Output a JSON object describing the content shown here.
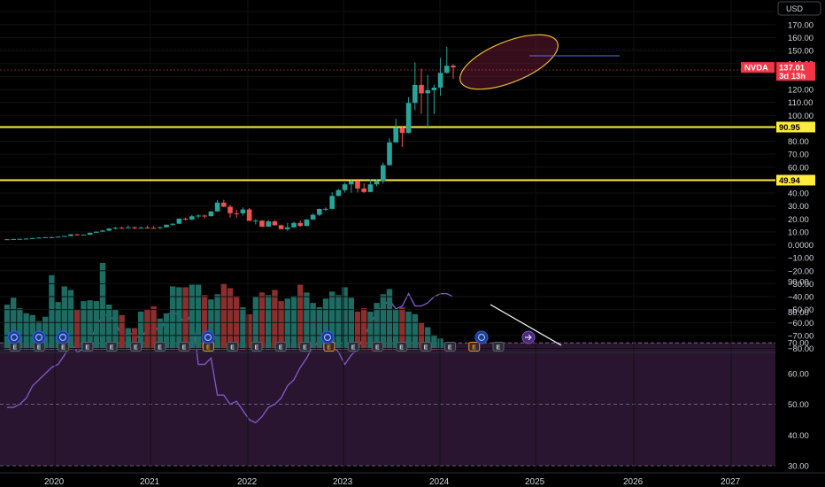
{
  "currency": "USD",
  "symbol": "NVDA",
  "last_price": "137.01",
  "countdown": "3d 13h",
  "price_axis": {
    "ticks": [
      "180.00",
      "170.00",
      "160.00",
      "150.00",
      "140.00",
      "130.00",
      "120.00",
      "110.00",
      "100.00",
      "90.00",
      "80.00",
      "70.00",
      "60.00",
      "50.00",
      "40.00",
      "30.00",
      "20.00",
      "10.00",
      "0.0000",
      "−10.00",
      "−20.00",
      "−30.00",
      "−40.00",
      "−50.00",
      "−60.00",
      "−70.00",
      "−80.00"
    ]
  },
  "rsi_axis": {
    "ticks": [
      "90.00",
      "80.00",
      "70.00",
      "60.00",
      "50.00",
      "40.00",
      "30.00"
    ]
  },
  "levels": [
    {
      "label": "90.95",
      "value": 90.95
    },
    {
      "label": "49.94",
      "value": 49.94
    }
  ],
  "time_axis": {
    "labels": [
      "2020",
      "2021",
      "2022",
      "2023",
      "2024",
      "2025",
      "2026",
      "2027"
    ]
  },
  "colors": {
    "up": "#26a69a",
    "down": "#ef5350",
    "level": "#ffeb3b",
    "rsi_line": "#7e57c2",
    "rsi_band": "#2a1530",
    "ellipse": "#e8b830",
    "badge_dividend": "#2962ff",
    "badge_earnings": "#787b86",
    "price_tag": "#f23645"
  },
  "chart_data": {
    "type": "candlestick",
    "interval": "monthly",
    "candles": [
      {
        "o": 4.0,
        "h": 4.6,
        "l": 3.9,
        "c": 4.3
      },
      {
        "o": 4.3,
        "h": 4.7,
        "l": 4.2,
        "c": 4.5
      },
      {
        "o": 4.5,
        "h": 4.9,
        "l": 4.4,
        "c": 4.6
      },
      {
        "o": 4.6,
        "h": 5.0,
        "l": 4.5,
        "c": 4.8
      },
      {
        "o": 4.8,
        "h": 5.4,
        "l": 4.7,
        "c": 5.2
      },
      {
        "o": 5.2,
        "h": 5.8,
        "l": 5.0,
        "c": 5.6
      },
      {
        "o": 5.6,
        "h": 6.0,
        "l": 5.3,
        "c": 5.9
      },
      {
        "o": 5.9,
        "h": 6.3,
        "l": 5.6,
        "c": 5.9
      },
      {
        "o": 5.9,
        "h": 6.5,
        "l": 5.8,
        "c": 6.3
      },
      {
        "o": 6.3,
        "h": 7.0,
        "l": 6.1,
        "c": 6.8
      },
      {
        "o": 6.8,
        "h": 8.3,
        "l": 6.6,
        "c": 8.1
      },
      {
        "o": 8.1,
        "h": 8.6,
        "l": 7.4,
        "c": 7.5
      },
      {
        "o": 7.5,
        "h": 8.0,
        "l": 7.2,
        "c": 7.8
      },
      {
        "o": 7.8,
        "h": 9.5,
        "l": 7.6,
        "c": 9.3
      },
      {
        "o": 9.3,
        "h": 10.3,
        "l": 9.2,
        "c": 10.2
      },
      {
        "o": 10.2,
        "h": 11.6,
        "l": 10.0,
        "c": 11.0
      },
      {
        "o": 11.0,
        "h": 12.8,
        "l": 10.6,
        "c": 12.6
      },
      {
        "o": 12.6,
        "h": 13.6,
        "l": 11.9,
        "c": 13.2
      },
      {
        "o": 13.2,
        "h": 14.0,
        "l": 12.8,
        "c": 13.0
      },
      {
        "o": 13.0,
        "h": 15.0,
        "l": 12.7,
        "c": 13.5
      },
      {
        "o": 13.5,
        "h": 14.3,
        "l": 12.0,
        "c": 12.9
      },
      {
        "o": 12.9,
        "h": 14.0,
        "l": 12.5,
        "c": 13.3
      },
      {
        "o": 13.3,
        "h": 14.8,
        "l": 12.9,
        "c": 13.1
      },
      {
        "o": 13.1,
        "h": 14.5,
        "l": 12.8,
        "c": 13.0
      },
      {
        "o": 13.0,
        "h": 13.9,
        "l": 12.2,
        "c": 13.6
      },
      {
        "o": 13.6,
        "h": 15.7,
        "l": 13.5,
        "c": 15.5
      },
      {
        "o": 15.5,
        "h": 16.5,
        "l": 14.8,
        "c": 16.3
      },
      {
        "o": 16.3,
        "h": 20.5,
        "l": 16.0,
        "c": 20.2
      },
      {
        "o": 20.2,
        "h": 21.0,
        "l": 18.9,
        "c": 19.5
      },
      {
        "o": 19.5,
        "h": 23.0,
        "l": 19.0,
        "c": 22.0
      },
      {
        "o": 22.0,
        "h": 23.5,
        "l": 20.8,
        "c": 22.6
      },
      {
        "o": 22.6,
        "h": 23.3,
        "l": 20.5,
        "c": 22.1
      },
      {
        "o": 22.1,
        "h": 26.0,
        "l": 21.9,
        "c": 25.8
      },
      {
        "o": 25.8,
        "h": 34.5,
        "l": 25.5,
        "c": 32.6
      },
      {
        "o": 32.6,
        "h": 34.7,
        "l": 29.1,
        "c": 29.4
      },
      {
        "o": 29.4,
        "h": 30.9,
        "l": 20.9,
        "c": 24.4
      },
      {
        "o": 24.4,
        "h": 27.0,
        "l": 20.8,
        "c": 24.3
      },
      {
        "o": 24.3,
        "h": 28.9,
        "l": 22.6,
        "c": 27.3
      },
      {
        "o": 27.3,
        "h": 28.4,
        "l": 18.5,
        "c": 18.5
      },
      {
        "o": 18.5,
        "h": 19.7,
        "l": 15.8,
        "c": 18.7
      },
      {
        "o": 18.7,
        "h": 19.1,
        "l": 14.0,
        "c": 14.0
      },
      {
        "o": 14.0,
        "h": 19.2,
        "l": 14.0,
        "c": 18.1
      },
      {
        "o": 18.1,
        "h": 19.2,
        "l": 14.9,
        "c": 15.1
      },
      {
        "o": 15.1,
        "h": 15.6,
        "l": 12.0,
        "c": 12.1
      },
      {
        "o": 12.1,
        "h": 16.9,
        "l": 10.8,
        "c": 13.5
      },
      {
        "o": 13.5,
        "h": 17.8,
        "l": 13.4,
        "c": 16.9
      },
      {
        "o": 16.9,
        "h": 18.8,
        "l": 14.0,
        "c": 14.6
      },
      {
        "o": 14.6,
        "h": 19.8,
        "l": 14.2,
        "c": 19.5
      },
      {
        "o": 19.5,
        "h": 24.1,
        "l": 19.4,
        "c": 23.2
      },
      {
        "o": 23.2,
        "h": 28.0,
        "l": 22.2,
        "c": 27.7
      },
      {
        "o": 27.7,
        "h": 28.9,
        "l": 26.0,
        "c": 27.8
      },
      {
        "o": 27.8,
        "h": 40.5,
        "l": 27.5,
        "c": 37.8
      },
      {
        "o": 37.8,
        "h": 43.0,
        "l": 37.5,
        "c": 42.3
      },
      {
        "o": 42.3,
        "h": 48.0,
        "l": 40.4,
        "c": 46.7
      },
      {
        "o": 46.7,
        "h": 50.2,
        "l": 40.3,
        "c": 49.3
      },
      {
        "o": 49.3,
        "h": 50.9,
        "l": 40.5,
        "c": 43.5
      },
      {
        "o": 43.5,
        "h": 47.6,
        "l": 40.1,
        "c": 40.8
      },
      {
        "o": 40.8,
        "h": 50.5,
        "l": 40.8,
        "c": 46.7
      },
      {
        "o": 46.7,
        "h": 50.6,
        "l": 45.3,
        "c": 49.5
      },
      {
        "o": 49.5,
        "h": 63.5,
        "l": 47.3,
        "c": 61.5
      },
      {
        "o": 61.5,
        "h": 82.3,
        "l": 61.4,
        "c": 79.1
      },
      {
        "o": 79.1,
        "h": 97.4,
        "l": 79.0,
        "c": 90.4
      },
      {
        "o": 90.4,
        "h": 92.0,
        "l": 75.6,
        "c": 86.4
      },
      {
        "o": 86.4,
        "h": 114.0,
        "l": 86.1,
        "c": 109.6
      },
      {
        "o": 109.6,
        "h": 140.8,
        "l": 104.0,
        "c": 123.5
      },
      {
        "o": 123.5,
        "h": 136.1,
        "l": 101.4,
        "c": 117.0
      },
      {
        "o": 117.0,
        "h": 131.3,
        "l": 90.7,
        "c": 119.4
      },
      {
        "o": 119.4,
        "h": 123.5,
        "l": 100.9,
        "c": 121.4
      },
      {
        "o": 121.4,
        "h": 144.4,
        "l": 115.1,
        "c": 132.8
      },
      {
        "o": 132.8,
        "h": 152.9,
        "l": 132.1,
        "c": 138.3
      },
      {
        "o": 138.3,
        "h": 139.6,
        "l": 128.2,
        "c": 137.0
      }
    ],
    "volume_relative": [
      0.52,
      0.6,
      0.48,
      0.42,
      0.4,
      0.33,
      0.38,
      0.86,
      0.55,
      0.73,
      0.69,
      0.46,
      0.56,
      0.57,
      0.56,
      1.0,
      0.52,
      0.46,
      0.4,
      0.25,
      0.25,
      0.44,
      0.47,
      0.5,
      0.36,
      0.42,
      0.73,
      0.72,
      0.72,
      0.75,
      0.75,
      0.63,
      0.58,
      0.64,
      0.76,
      0.71,
      0.62,
      0.49,
      0.41,
      0.61,
      0.66,
      0.63,
      0.69,
      0.56,
      0.59,
      0.62,
      0.75,
      0.66,
      0.54,
      0.49,
      0.59,
      0.67,
      0.63,
      0.72,
      0.6,
      0.44,
      0.48,
      0.44,
      0.54,
      0.64,
      0.7,
      0.47,
      0.49,
      0.44,
      0.41,
      0.31,
      0.26,
      0.17,
      0.13,
      0.08,
      0.05
    ],
    "rsi": [
      49,
      49,
      50,
      52,
      56,
      58,
      60,
      62,
      63,
      66,
      70,
      67,
      68,
      71,
      75,
      79,
      79,
      77,
      72,
      73,
      73,
      71,
      75,
      76,
      73,
      79,
      80,
      79,
      76,
      80,
      63,
      63,
      65,
      53,
      53,
      50,
      51,
      48,
      45,
      44,
      46,
      49,
      50,
      52,
      56,
      58,
      62,
      65,
      69,
      70,
      71,
      69,
      67,
      63,
      66,
      68,
      72,
      76,
      80,
      82,
      84,
      81,
      82,
      86,
      82,
      82,
      83,
      85,
      86,
      86,
      85
    ],
    "rsi_levels": [
      70,
      50,
      30
    ],
    "price_range": [
      -80,
      185
    ],
    "rsi_range": [
      26,
      98
    ]
  }
}
